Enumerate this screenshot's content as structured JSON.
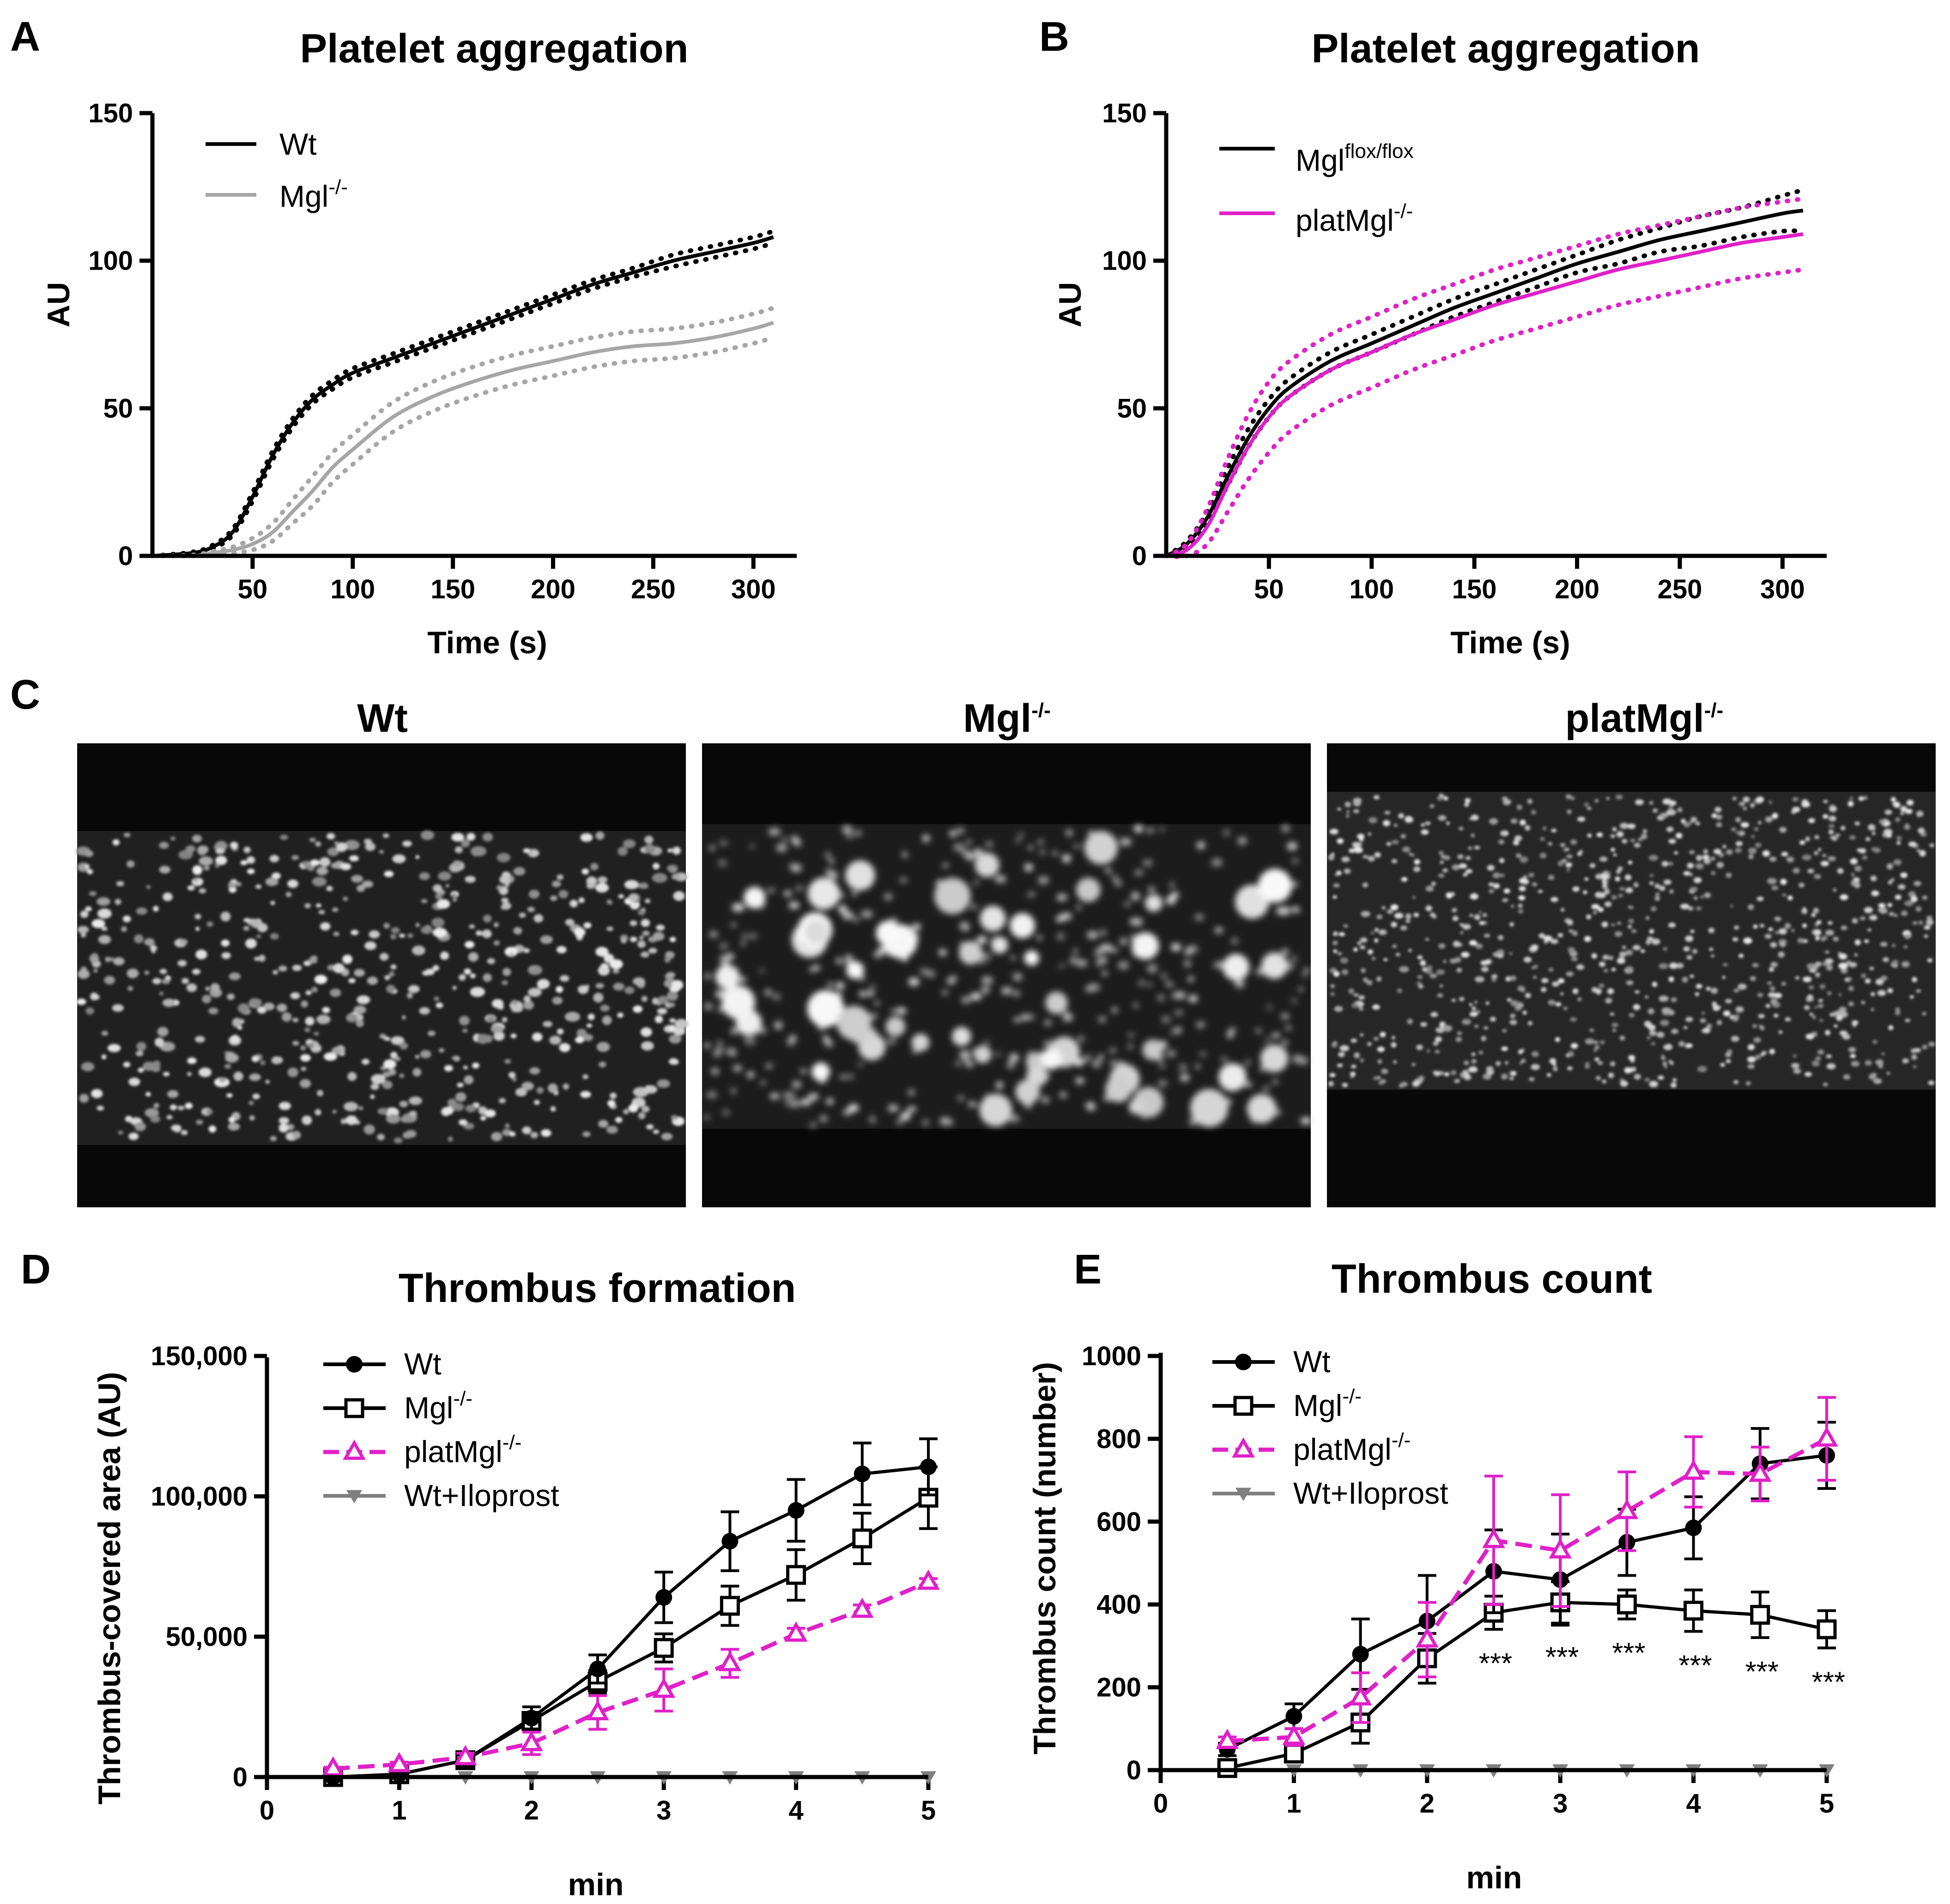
{
  "chart_data": [
    {
      "id": "A",
      "panel_letter": "A",
      "type": "line",
      "title": "Platelet aggregation",
      "xlabel": "Time (s)",
      "ylabel": "AU",
      "xlim": [
        0,
        310
      ],
      "ylim": [
        0,
        150
      ],
      "xticks": [
        "50",
        "100",
        "150",
        "200",
        "250",
        "300"
      ],
      "yticks": [
        "0",
        "50",
        "100",
        "150"
      ],
      "x": [
        0,
        20,
        30,
        40,
        50,
        60,
        70,
        80,
        90,
        100,
        120,
        140,
        160,
        180,
        200,
        220,
        240,
        260,
        280,
        300,
        310
      ],
      "series": [
        {
          "name": "Wt",
          "sup": "",
          "color": "#000000",
          "mean": [
            0,
            1,
            3,
            8,
            20,
            34,
            45,
            53,
            58,
            62,
            67,
            72,
            77,
            82,
            87,
            92,
            96,
            100,
            103,
            106,
            108
          ],
          "err": [
            0,
            0.3,
            0.6,
            1,
            1.5,
            1.5,
            1.5,
            1.5,
            1.5,
            1.5,
            1.5,
            1.5,
            1.5,
            1.5,
            1.5,
            1.5,
            1.5,
            2,
            2,
            2,
            2
          ]
        },
        {
          "name": "Mgl",
          "sup": "-/-",
          "color": "#a6a6a6",
          "mean": [
            0,
            0,
            1,
            2,
            4,
            8,
            15,
            22,
            30,
            36,
            47,
            54,
            59,
            63,
            66,
            69,
            71,
            72,
            74,
            77,
            79
          ],
          "err": [
            0,
            0.3,
            0.5,
            1,
            2,
            3,
            4,
            5,
            5,
            5,
            5,
            5,
            5,
            5,
            5,
            5,
            5,
            5,
            5,
            5,
            5
          ]
        }
      ]
    },
    {
      "id": "B",
      "panel_letter": "B",
      "type": "line",
      "title": "Platelet aggregation",
      "xlabel": "Time (s)",
      "ylabel": "AU",
      "xlim": [
        0,
        310
      ],
      "ylim": [
        0,
        150
      ],
      "xticks": [
        "50",
        "100",
        "150",
        "200",
        "250",
        "300"
      ],
      "yticks": [
        "0",
        "50",
        "100",
        "150"
      ],
      "x": [
        0,
        10,
        20,
        30,
        40,
        50,
        60,
        80,
        100,
        120,
        140,
        160,
        180,
        200,
        220,
        240,
        260,
        280,
        300,
        310
      ],
      "series": [
        {
          "name": "Mgl",
          "sup": "flox/flox",
          "color": "#000000",
          "mean": [
            0,
            4,
            13,
            27,
            40,
            50,
            57,
            66,
            72,
            78,
            84,
            89,
            94,
            99,
            103,
            107,
            110,
            113,
            116,
            117
          ],
          "err": [
            0,
            1,
            2,
            3,
            3,
            3,
            3,
            3,
            3,
            3,
            3,
            3,
            3,
            3,
            4,
            4,
            5,
            5,
            6,
            7
          ]
        },
        {
          "name": "platMgl",
          "sup": "-/-",
          "color": "#e020c8",
          "mean": [
            0,
            2,
            10,
            24,
            37,
            47,
            54,
            63,
            69,
            75,
            80,
            85,
            89,
            93,
            97,
            100,
            103,
            106,
            108,
            109
          ],
          "err": [
            0,
            2,
            6,
            9,
            11,
            12,
            12,
            12,
            12,
            12,
            12,
            12,
            12,
            12,
            12,
            12,
            12,
            12,
            12,
            12
          ]
        }
      ]
    },
    {
      "id": "D",
      "panel_letter": "D",
      "type": "line",
      "title": "Thrombus formation",
      "xlabel": "min",
      "ylabel": "Thrombus-covered area (AU)",
      "xlim": [
        0,
        5
      ],
      "ylim": [
        0,
        150000
      ],
      "xticks": [
        "0",
        "1",
        "2",
        "3",
        "4",
        "5"
      ],
      "yticks": [
        "0",
        "50,000",
        "100,000",
        "150,000"
      ],
      "x": [
        0.5,
        1,
        1.5,
        2,
        2.5,
        3,
        3.5,
        4,
        4.5,
        5
      ],
      "series": [
        {
          "name": "Wt",
          "sup": "",
          "color": "#000000",
          "marker": "circle",
          "dashed": false,
          "values": [
            0,
            1000,
            6000,
            21000,
            38500,
            64000,
            84000,
            95000,
            108000,
            110500
          ],
          "err": [
            0,
            500,
            2000,
            4000,
            5000,
            9000,
            10500,
            11000,
            11000,
            10000
          ]
        },
        {
          "name": "Mgl",
          "sup": "-/-",
          "color": "#000000",
          "marker": "square",
          "dashed": false,
          "values": [
            0,
            1000,
            6000,
            20000,
            34000,
            46000,
            61000,
            72000,
            85000,
            99500
          ],
          "err": [
            0,
            500,
            2000,
            3000,
            4000,
            5000,
            7000,
            9000,
            9000,
            11000
          ]
        },
        {
          "name": "platMgl",
          "sup": "-/-",
          "color": "#e020c8",
          "marker": "triangle",
          "dashed": true,
          "values": [
            3000,
            4500,
            7000,
            12000,
            23000,
            31000,
            40500,
            51000,
            59500,
            69500
          ],
          "err": [
            500,
            800,
            1500,
            4000,
            6000,
            7500,
            5000,
            2000,
            1800,
            1200
          ]
        },
        {
          "name": "Wt+Iloprost",
          "sup": "",
          "color": "#7f7f7f",
          "marker": "triangle-down",
          "dashed": false,
          "values": [
            0,
            0,
            0,
            0,
            0,
            0,
            0,
            0,
            0,
            0
          ],
          "err": [
            0,
            0,
            0,
            0,
            0,
            0,
            0,
            0,
            0,
            0
          ]
        }
      ]
    },
    {
      "id": "E",
      "panel_letter": "E",
      "type": "line",
      "title": "Thrombus count",
      "xlabel": "min",
      "ylabel": "Thrombus count (number)",
      "xlim": [
        0,
        5
      ],
      "ylim": [
        0,
        1000
      ],
      "xticks": [
        "0",
        "1",
        "2",
        "3",
        "4",
        "5"
      ],
      "yticks": [
        "0",
        "200",
        "400",
        "600",
        "800",
        "1000"
      ],
      "x": [
        0.5,
        1,
        1.5,
        2,
        2.5,
        3,
        3.5,
        4,
        4.5,
        5
      ],
      "series": [
        {
          "name": "Wt",
          "sup": "",
          "color": "#000000",
          "marker": "circle",
          "dashed": false,
          "values": [
            50,
            130,
            280,
            360,
            480,
            460,
            550,
            585,
            740,
            760
          ],
          "err": [
            15,
            30,
            85,
            110,
            100,
            110,
            80,
            75,
            85,
            80
          ]
        },
        {
          "name": "Mgl",
          "sup": "-/-",
          "color": "#000000",
          "marker": "square",
          "dashed": false,
          "values": [
            5,
            40,
            115,
            270,
            380,
            405,
            400,
            385,
            375,
            340
          ],
          "err": [
            5,
            20,
            50,
            60,
            40,
            50,
            35,
            50,
            55,
            45
          ]
        },
        {
          "name": "platMgl",
          "sup": "-/-",
          "color": "#e020c8",
          "marker": "triangle",
          "dashed": true,
          "values": [
            70,
            80,
            175,
            315,
            555,
            530,
            625,
            720,
            715,
            800
          ],
          "err": [
            10,
            20,
            60,
            90,
            155,
            135,
            95,
            85,
            65,
            100
          ]
        },
        {
          "name": "Wt+Iloprost",
          "sup": "",
          "color": "#7f7f7f",
          "marker": "triangle-down",
          "dashed": false,
          "values": [
            0,
            0,
            0,
            0,
            0,
            0,
            0,
            0,
            0,
            0
          ],
          "err": [
            0,
            0,
            0,
            0,
            0,
            0,
            0,
            0,
            0,
            0
          ]
        }
      ],
      "annotations": {
        "text": "***",
        "x": [
          2.5,
          3,
          3.5,
          4,
          4.5,
          5
        ]
      }
    }
  ],
  "panel_c": {
    "letter": "C",
    "images": [
      {
        "title": "Wt",
        "sup": "",
        "clusters": "fine"
      },
      {
        "title": "Mgl",
        "sup": "-/-",
        "clusters": "large"
      },
      {
        "title": "platMgl",
        "sup": "-/-",
        "clusters": "fine"
      }
    ]
  }
}
